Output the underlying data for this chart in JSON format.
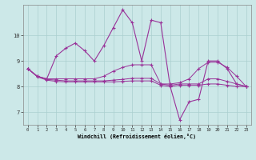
{
  "xlabel": "Windchill (Refroidissement éolien,°C)",
  "background_color": "#cce8e8",
  "grid_color": "#aacfcf",
  "line_color": "#993399",
  "hours": [
    0,
    1,
    2,
    3,
    4,
    5,
    6,
    7,
    8,
    9,
    10,
    11,
    12,
    13,
    14,
    15,
    16,
    17,
    18,
    19,
    20,
    21,
    22,
    23
  ],
  "series_volatile": [
    8.7,
    8.4,
    8.3,
    9.2,
    9.5,
    9.7,
    9.4,
    9.0,
    9.6,
    10.3,
    11.0,
    10.5,
    9.0,
    10.6,
    10.5,
    8.0,
    6.7,
    7.4,
    7.5,
    9.0,
    9.0,
    8.7,
    8.1,
    8.0
  ],
  "series1": [
    8.7,
    8.4,
    8.3,
    8.3,
    8.3,
    8.3,
    8.3,
    8.3,
    8.4,
    8.6,
    8.75,
    8.85,
    8.85,
    8.85,
    8.1,
    8.1,
    8.15,
    8.3,
    8.7,
    8.95,
    8.95,
    8.75,
    8.4,
    8.0
  ],
  "series2": [
    8.7,
    8.4,
    8.28,
    8.25,
    8.22,
    8.22,
    8.22,
    8.22,
    8.22,
    8.25,
    8.28,
    8.32,
    8.32,
    8.32,
    8.1,
    8.05,
    8.1,
    8.1,
    8.1,
    8.3,
    8.3,
    8.2,
    8.1,
    8.0
  ],
  "series3": [
    8.7,
    8.38,
    8.25,
    8.2,
    8.18,
    8.18,
    8.18,
    8.18,
    8.18,
    8.18,
    8.2,
    8.22,
    8.22,
    8.22,
    8.05,
    8.0,
    8.05,
    8.05,
    8.05,
    8.1,
    8.1,
    8.05,
    8.0,
    8.0
  ],
  "ylim": [
    6.5,
    11.2
  ],
  "yticks": [
    7,
    8,
    9,
    10
  ],
  "xticks": [
    0,
    1,
    2,
    3,
    4,
    5,
    6,
    7,
    8,
    9,
    10,
    11,
    12,
    13,
    14,
    15,
    16,
    17,
    18,
    19,
    20,
    21,
    22,
    23
  ]
}
